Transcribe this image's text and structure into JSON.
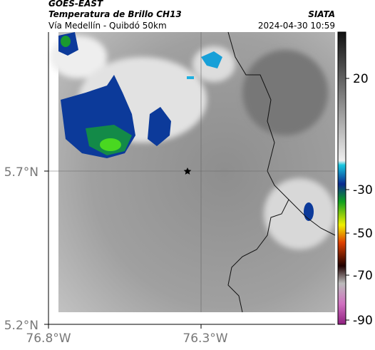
{
  "header": {
    "satellite": "GOES-EAST",
    "product": "Temperatura de Brillo CH13",
    "region": "Vía Medellín - Quibdó 50km",
    "source": "SIATA",
    "datetime": "2024-04-30 10:59"
  },
  "axes": {
    "y_labels": [
      "5.7°N",
      "5.2°N"
    ],
    "x_labels": [
      "76.8°W",
      "76.3°W"
    ]
  },
  "colorbar": {
    "labels": [
      "20",
      "-30",
      "-50",
      "-70",
      "-90"
    ]
  }
}
